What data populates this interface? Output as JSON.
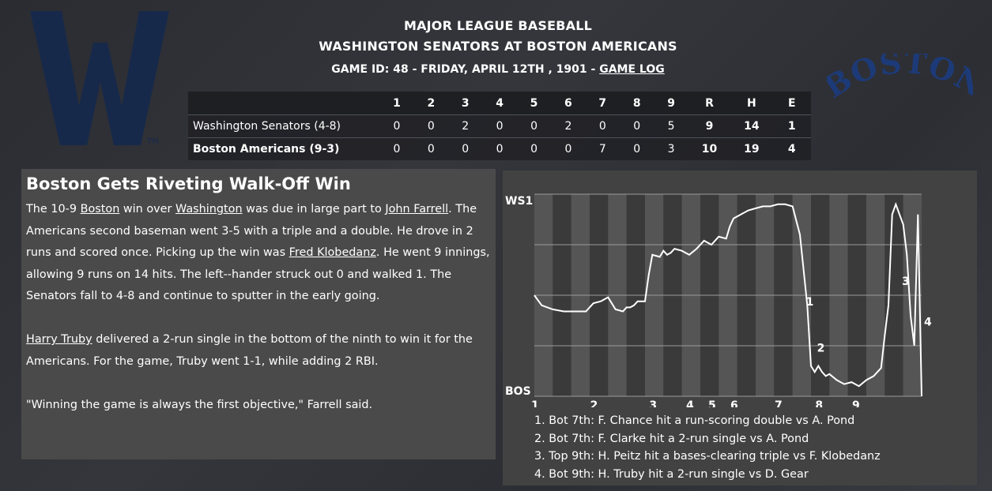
{
  "header": {
    "league": "MAJOR LEAGUE BASEBALL",
    "matchup": "WASHINGTON SENATORS AT BOSTON AMERICANS",
    "game_info": "GAME ID: 48 - FRIDAY, APRIL 12TH , 1901 - ",
    "game_log_link": "GAME LOG"
  },
  "logos": {
    "away": "W",
    "home": "BOSTON"
  },
  "boxscore": {
    "headers": [
      "",
      "1",
      "2",
      "3",
      "4",
      "5",
      "6",
      "7",
      "8",
      "9",
      "R",
      "H",
      "E"
    ],
    "rows": [
      {
        "team": "Washington Senators (4-8)",
        "innings": [
          "0",
          "0",
          "2",
          "0",
          "0",
          "2",
          "0",
          "0",
          "5"
        ],
        "R": "9",
        "H": "14",
        "E": "1"
      },
      {
        "team": "Boston Americans (9-3)",
        "innings": [
          "0",
          "0",
          "0",
          "0",
          "0",
          "0",
          "7",
          "0",
          "3"
        ],
        "R": "10",
        "H": "19",
        "E": "4"
      }
    ]
  },
  "story": {
    "headline": "Boston Gets Riveting Walk-Off Win",
    "p1": {
      "t1": "The 10-9 ",
      "link1": "Boston",
      "t2": " win over ",
      "link2": "Washington",
      "t3": " was due in large part to ",
      "link3": "John Farrell",
      "t4": ". The Americans second baseman went 3-5 with a triple and a double. He drove in 2 runs and scored once. Picking up the win was ",
      "link4": "Fred Klobedanz",
      "t5": ". He went 9 innings, allowing 9 runs on 14 hits. The left--hander struck out 0 and walked 1. The Senators fall to 4-8 and continue to sputter in the early going."
    },
    "p2": {
      "link1": "Harry Truby",
      "t1": " delivered a 2-run single in the bottom of the ninth to win it for the Americans. For the game, Truby went 1-1, while adding 2 RBI."
    },
    "p3": "\"Winning the game is always the first objective,\" Farrell said."
  },
  "chart_data": {
    "type": "line",
    "title": "",
    "top_label": "WS1",
    "bottom_label": "BOS",
    "x_ticks": [
      "1",
      "2",
      "3",
      "4",
      "5",
      "6",
      "7",
      "8",
      "9"
    ],
    "x": [
      0,
      0.2,
      0.5,
      0.8,
      1.1,
      1.4,
      1.6,
      1.8,
      2.0,
      2.2,
      2.4,
      2.5,
      2.6,
      2.7,
      2.8,
      3.0,
      3.1,
      3.2,
      3.4,
      3.5,
      3.6,
      3.7,
      3.8,
      4.0,
      4.1,
      4.2,
      4.4,
      4.5,
      4.6,
      4.8,
      5.0,
      5.2,
      5.3,
      5.4,
      5.6,
      5.8,
      6.0,
      6.2,
      6.4,
      6.6,
      6.8,
      7.0,
      7.2,
      7.4,
      7.5,
      7.6,
      7.7,
      7.8,
      7.9,
      8.0,
      8.2,
      8.4,
      8.6,
      8.8,
      9.0,
      9.2,
      9.4,
      9.5,
      9.6,
      9.7,
      9.8,
      9.9,
      10.0,
      10.1,
      10.2,
      10.3,
      10.4,
      10.5
    ],
    "y": [
      0.5,
      0.55,
      0.57,
      0.58,
      0.58,
      0.58,
      0.54,
      0.53,
      0.51,
      0.57,
      0.58,
      0.56,
      0.56,
      0.55,
      0.53,
      0.53,
      0.4,
      0.3,
      0.31,
      0.28,
      0.3,
      0.29,
      0.27,
      0.28,
      0.29,
      0.3,
      0.27,
      0.25,
      0.23,
      0.25,
      0.21,
      0.22,
      0.16,
      0.12,
      0.1,
      0.08,
      0.07,
      0.06,
      0.06,
      0.05,
      0.05,
      0.06,
      0.2,
      0.55,
      0.85,
      0.88,
      0.85,
      0.88,
      0.9,
      0.89,
      0.92,
      0.94,
      0.93,
      0.95,
      0.92,
      0.9,
      0.86,
      0.7,
      0.55,
      0.1,
      0.05,
      0.1,
      0.15,
      0.3,
      0.6,
      0.75,
      0.1,
      1.0
    ],
    "y_range": [
      0,
      1
    ],
    "y_meaning": "0 = WS1 win probability 100%, 1 = BOS win probability 100%",
    "markers": [
      {
        "label": "1",
        "x": 7.3
      },
      {
        "label": "2",
        "x": 7.6
      },
      {
        "label": "3",
        "x": 9.9
      },
      {
        "label": "4",
        "x": 10.5
      }
    ],
    "colors": {
      "line": "#ffffff",
      "band_dark": "#3a3a3a",
      "band_light": "#555555"
    }
  },
  "legend": [
    "1. Bot 7th: F. Chance hit a run-scoring double vs A. Pond",
    "2. Bot 7th: F. Clarke hit a 2-run single vs A. Pond",
    "3. Top 9th: H. Peitz hit a bases-clearing triple vs F. Klobedanz",
    "4. Bot 9th: H. Truby hit a 2-run single vs D. Gear"
  ]
}
